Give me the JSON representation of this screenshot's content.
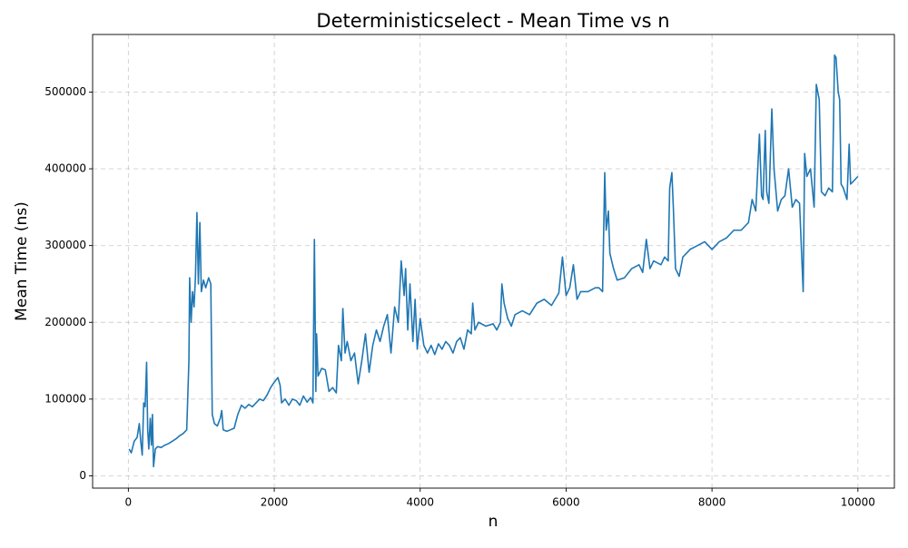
{
  "chart_data": {
    "type": "line",
    "title": "Deterministicselect - Mean Time vs n",
    "x_label": "n",
    "y_label": "Mean Time (ns)",
    "color": "#1f77b4",
    "grid": true,
    "xlim": [
      -490,
      10500
    ],
    "ylim": [
      -16000,
      575000
    ],
    "xticks": [
      0,
      2000,
      4000,
      6000,
      8000,
      10000
    ],
    "yticks": [
      0,
      100000,
      200000,
      300000,
      400000,
      500000
    ],
    "x": [
      10,
      40,
      80,
      120,
      150,
      170,
      190,
      210,
      230,
      250,
      265,
      280,
      300,
      315,
      330,
      345,
      370,
      400,
      450,
      500,
      550,
      600,
      650,
      700,
      750,
      800,
      830,
      840,
      860,
      880,
      900,
      920,
      940,
      960,
      980,
      1000,
      1030,
      1060,
      1100,
      1130,
      1150,
      1180,
      1220,
      1260,
      1280,
      1300,
      1350,
      1400,
      1450,
      1500,
      1550,
      1600,
      1650,
      1700,
      1750,
      1800,
      1850,
      1900,
      1950,
      2000,
      2050,
      2080,
      2100,
      2150,
      2200,
      2250,
      2300,
      2350,
      2400,
      2450,
      2500,
      2530,
      2550,
      2570,
      2580,
      2600,
      2650,
      2700,
      2750,
      2800,
      2850,
      2880,
      2920,
      2940,
      2970,
      3000,
      3050,
      3100,
      3150,
      3200,
      3250,
      3300,
      3350,
      3400,
      3450,
      3500,
      3550,
      3600,
      3650,
      3700,
      3740,
      3780,
      3800,
      3830,
      3860,
      3900,
      3930,
      3960,
      4000,
      4050,
      4100,
      4150,
      4200,
      4250,
      4300,
      4350,
      4400,
      4450,
      4500,
      4550,
      4600,
      4650,
      4700,
      4720,
      4750,
      4800,
      4900,
      5000,
      5050,
      5100,
      5120,
      5150,
      5200,
      5250,
      5300,
      5400,
      5500,
      5600,
      5700,
      5800,
      5900,
      5950,
      6000,
      6050,
      6100,
      6150,
      6200,
      6300,
      6400,
      6450,
      6500,
      6530,
      6550,
      6580,
      6600,
      6650,
      6700,
      6800,
      6900,
      7000,
      7050,
      7100,
      7150,
      7200,
      7300,
      7350,
      7400,
      7420,
      7450,
      7470,
      7500,
      7550,
      7600,
      7700,
      7800,
      7900,
      8000,
      8100,
      8200,
      8300,
      8400,
      8500,
      8550,
      8600,
      8650,
      8680,
      8700,
      8730,
      8750,
      8780,
      8820,
      8850,
      8900,
      8950,
      9000,
      9050,
      9100,
      9150,
      9200,
      9250,
      9270,
      9300,
      9350,
      9400,
      9430,
      9470,
      9500,
      9550,
      9600,
      9650,
      9680,
      9700,
      9730,
      9750,
      9770,
      9800,
      9850,
      9880,
      9900,
      9950,
      10000
    ],
    "values": [
      35000,
      30000,
      45000,
      50000,
      68000,
      45000,
      27000,
      95000,
      90000,
      148000,
      60000,
      35000,
      75000,
      40000,
      80000,
      12000,
      35000,
      38000,
      37000,
      40000,
      42000,
      45000,
      48000,
      52000,
      55000,
      60000,
      150000,
      258000,
      200000,
      240000,
      220000,
      260000,
      343000,
      250000,
      330000,
      240000,
      255000,
      245000,
      258000,
      250000,
      80000,
      68000,
      65000,
      75000,
      85000,
      60000,
      58000,
      60000,
      62000,
      80000,
      92000,
      88000,
      93000,
      90000,
      95000,
      100000,
      98000,
      105000,
      115000,
      122000,
      128000,
      118000,
      95000,
      100000,
      92000,
      100000,
      98000,
      92000,
      104000,
      96000,
      102000,
      95000,
      308000,
      110000,
      185000,
      130000,
      140000,
      138000,
      110000,
      115000,
      108000,
      170000,
      150000,
      218000,
      160000,
      175000,
      150000,
      160000,
      120000,
      150000,
      185000,
      135000,
      170000,
      190000,
      175000,
      195000,
      210000,
      160000,
      220000,
      200000,
      280000,
      235000,
      270000,
      190000,
      250000,
      175000,
      230000,
      165000,
      205000,
      170000,
      160000,
      170000,
      158000,
      172000,
      165000,
      175000,
      170000,
      160000,
      175000,
      180000,
      165000,
      190000,
      185000,
      225000,
      190000,
      200000,
      195000,
      198000,
      190000,
      200000,
      250000,
      225000,
      205000,
      195000,
      210000,
      215000,
      210000,
      225000,
      230000,
      222000,
      238000,
      285000,
      235000,
      245000,
      275000,
      230000,
      240000,
      240000,
      245000,
      245000,
      240000,
      395000,
      320000,
      345000,
      290000,
      270000,
      255000,
      258000,
      270000,
      275000,
      265000,
      308000,
      270000,
      280000,
      275000,
      285000,
      280000,
      375000,
      395000,
      350000,
      270000,
      260000,
      285000,
      295000,
      300000,
      305000,
      295000,
      305000,
      310000,
      320000,
      320000,
      330000,
      360000,
      345000,
      445000,
      365000,
      360000,
      450000,
      370000,
      355000,
      478000,
      400000,
      345000,
      360000,
      365000,
      400000,
      350000,
      360000,
      355000,
      240000,
      420000,
      390000,
      400000,
      350000,
      510000,
      490000,
      370000,
      365000,
      375000,
      370000,
      548000,
      545000,
      500000,
      490000,
      380000,
      375000,
      360000,
      432000,
      380000,
      385000,
      390000
    ]
  }
}
